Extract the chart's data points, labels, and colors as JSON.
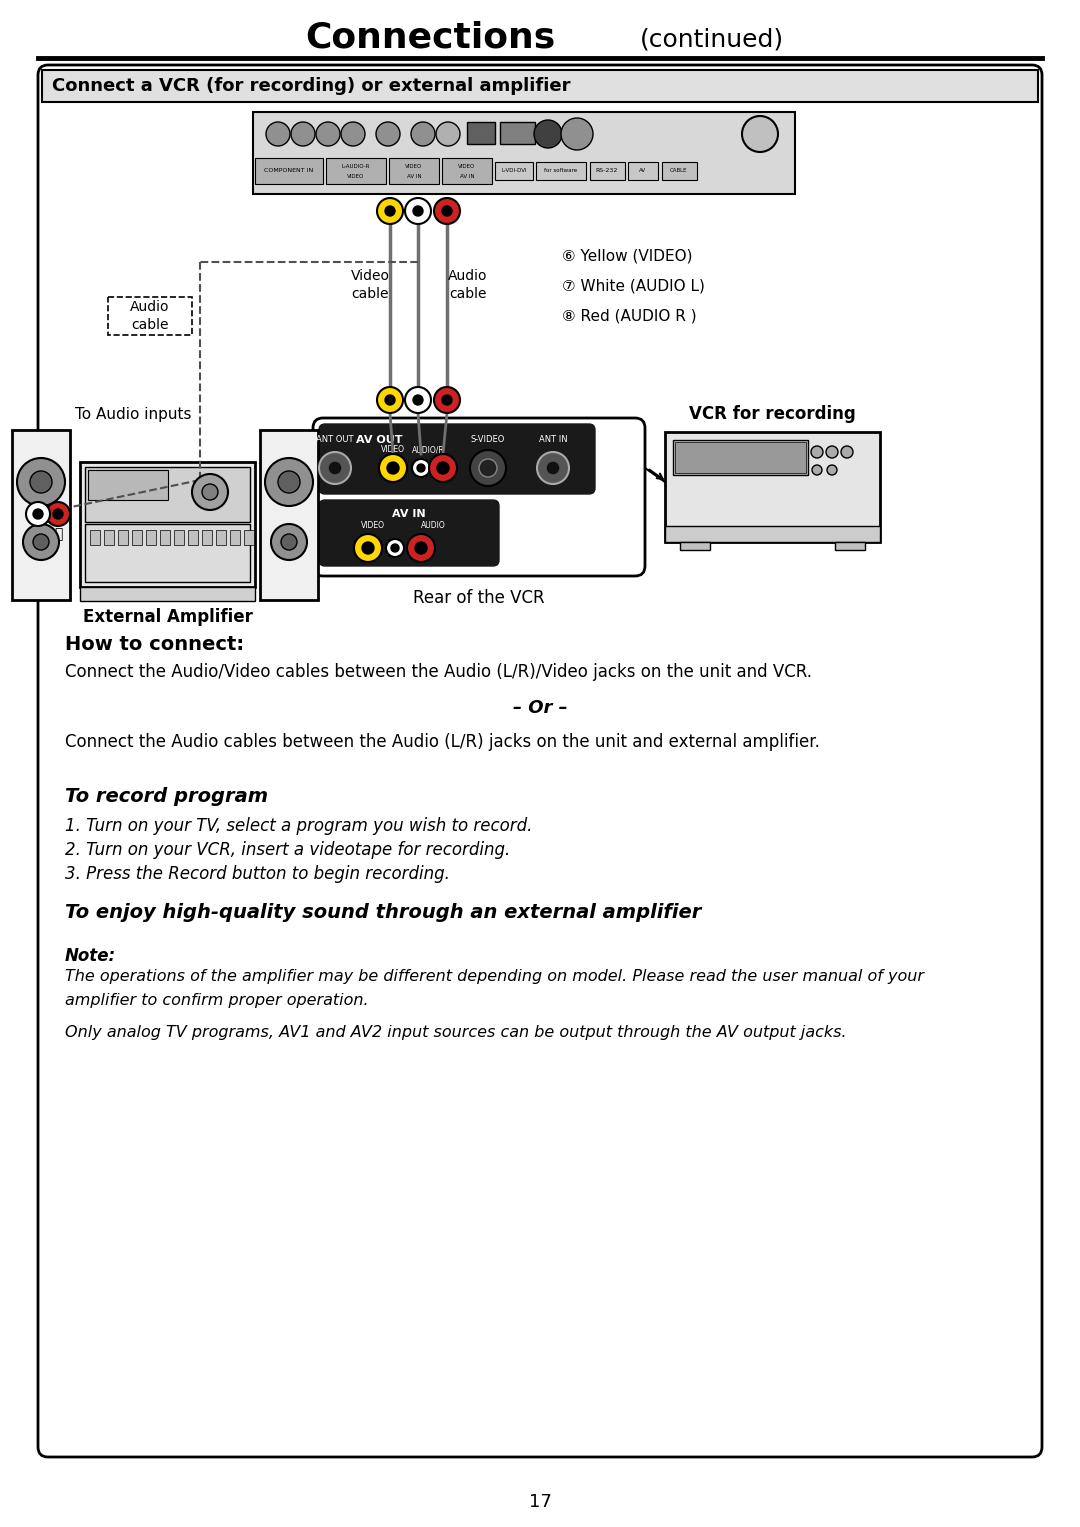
{
  "page_title": "Connections",
  "page_title_suffix": "(continued)",
  "page_number": "17",
  "box_title": "Connect a VCR (for recording) or external amplifier",
  "bg_color": "#ffffff",
  "section_how_title": "How to connect:",
  "section_how_text1": "Connect the Audio/Video cables between the Audio (L/R)/Video jacks on the unit and VCR.",
  "section_how_or": "– Or –",
  "section_how_text2": "Connect the Audio cables between the Audio (L/R) jacks on the unit and external amplifier.",
  "section_record_title": "To record program",
  "section_record_items": [
    "1. Turn on your TV, select a program you wish to record.",
    "2. Turn on your VCR, insert a videotape for recording.",
    "3. Press the Record button to begin recording."
  ],
  "section_enjoy_title": "To enjoy high-quality sound through an external amplifier",
  "section_note_title": "Note:",
  "section_note_text1": "The operations of the amplifier may be different depending on model. Please read the user manual of your",
  "section_note_text1b": "amplifier to confirm proper operation.",
  "section_note_text2": "Only analog TV programs, AV1 and AV2 input sources can be output through the AV output jacks.",
  "legend_yellow": "⑥ Yellow (VIDEO)",
  "legend_white": "⑦ White (AUDIO L)",
  "legend_red": "⑧ Red (AUDIO R )",
  "label_video_cable": "Video\ncable",
  "label_audio_cable": "Audio\ncable",
  "label_audio_cable2": "Audio\ncable",
  "label_vcr_recording": "VCR for recording",
  "label_rear_vcr": "Rear of the VCR",
  "label_external_amp": "External Amplifier",
  "label_to_audio": "To Audio inputs"
}
